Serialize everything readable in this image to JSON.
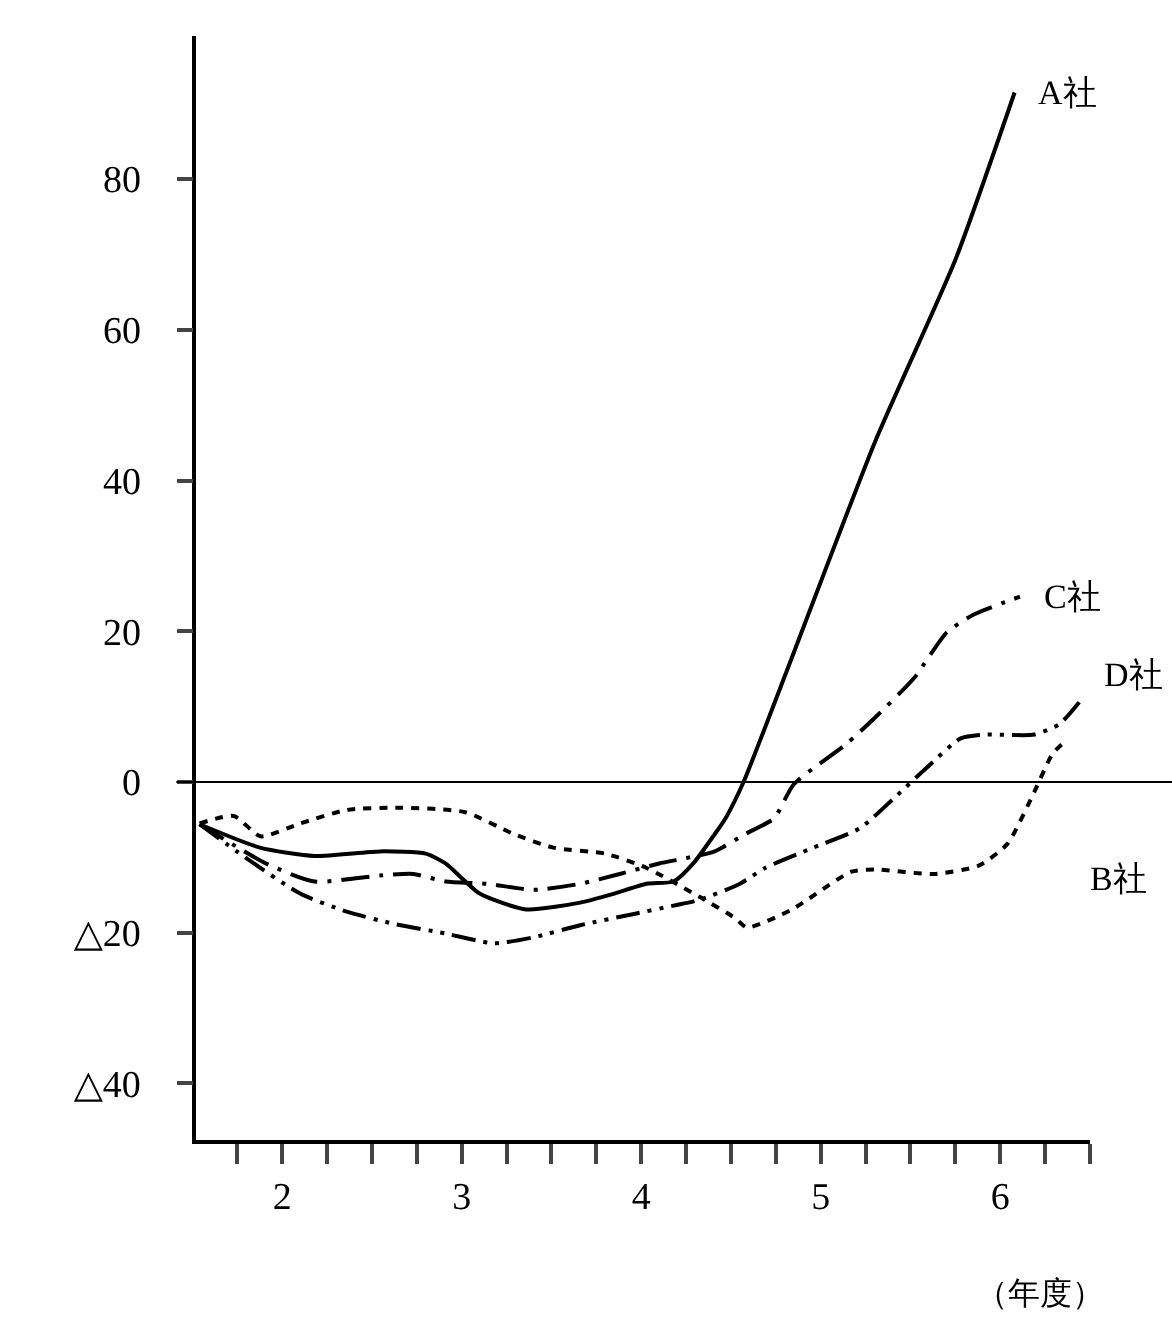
{
  "chart_data": {
    "type": "line",
    "xlabel": "（年度）",
    "x": [
      1.54,
      1.876,
      2.18,
      2.545,
      2.8,
      2.91,
      3.1,
      3.36,
      3.66,
      3.85,
      4.03,
      4.18,
      4.29,
      4.41,
      4.47,
      4.57,
      5.3,
      5.75,
      6.08
    ],
    "series": [
      {
        "name": "A社",
        "color": "#000000",
        "line_style": "solid",
        "values": [
          -5.6,
          -8.7,
          -9.8,
          -9.2,
          -9.5,
          -10.8,
          -14.8,
          -16.9,
          -16,
          -14.8,
          -13.5,
          -13.2,
          -10.8,
          -6.9,
          -4.8,
          0,
          45,
          69.3,
          91.5
        ]
      },
      {
        "name": "B社",
        "color": "#000000",
        "line_style": "dashed",
        "x": [
          1.54,
          1.73,
          1.88,
          2.1,
          2.36,
          2.66,
          3.02,
          3.29,
          3.51,
          3.8,
          4.03,
          4.33,
          4.52,
          4.59,
          4.84,
          5.17,
          5.3,
          5.63,
          5.88,
          6.04,
          6.19,
          6.29,
          6.37
        ],
        "values": [
          -5.5,
          -4.5,
          -7.2,
          -5.5,
          -3.7,
          -3.4,
          -4,
          -6.9,
          -8.7,
          -9.5,
          -11.4,
          -15.3,
          -18,
          -19.3,
          -16.9,
          -11.9,
          -11.6,
          -12.2,
          -11.1,
          -8.2,
          -1.3,
          3.7,
          5.6
        ]
      },
      {
        "name": "C社",
        "color": "#000000",
        "line_style": "dashdot",
        "x": [
          1.54,
          1.91,
          2.18,
          2.545,
          2.73,
          2.91,
          3.14,
          3.4,
          3.66,
          3.88,
          4.1,
          4.25,
          4.41,
          4.58,
          4.74,
          4.85,
          5.14,
          5.3,
          5.52,
          5.7,
          5.85,
          6.11
        ],
        "values": [
          -5.6,
          -10.8,
          -13.2,
          -12.4,
          -12.2,
          -13.2,
          -13.5,
          -14.3,
          -13.5,
          -12.2,
          -10.8,
          -10.1,
          -9.2,
          -6.9,
          -4.8,
          -0.3,
          5,
          8.5,
          13.8,
          19.8,
          22.2,
          24.6
        ]
      },
      {
        "name": "D社",
        "color": "#000000",
        "line_style": "dashdotdot",
        "x": [
          1.54,
          1.8,
          2.1,
          2.36,
          2.62,
          2.91,
          3.18,
          3.4,
          3.66,
          3.96,
          4.18,
          4.33,
          4.55,
          4.69,
          4.96,
          5.22,
          5.41,
          5.59,
          5.78,
          5.92,
          6.19,
          6.33,
          6.44
        ],
        "values": [
          -5.6,
          -10.1,
          -14.8,
          -17.2,
          -18.8,
          -20.1,
          -21.4,
          -20.6,
          -19,
          -17.5,
          -16.4,
          -15.6,
          -13.5,
          -11.4,
          -8.7,
          -6.1,
          -2.1,
          1.9,
          5.8,
          6.3,
          6.3,
          7.7,
          10.6
        ]
      }
    ],
    "xlim": [
      1.52,
      6.5
    ],
    "xticks": [
      {
        "value": 1.75,
        "label": null
      },
      2,
      {
        "value": 2.25,
        "label": null
      },
      {
        "value": 2.5,
        "label": null
      },
      {
        "value": 2.75,
        "label": null
      },
      3,
      {
        "value": 3.25,
        "label": null
      },
      {
        "value": 3.5,
        "label": null
      },
      {
        "value": 3.75,
        "label": null
      },
      4,
      {
        "value": 4.25,
        "label": null
      },
      {
        "value": 4.5,
        "label": null
      },
      {
        "value": 4.75,
        "label": null
      },
      5,
      {
        "value": 5.25,
        "label": null
      },
      {
        "value": 5.5,
        "label": null
      },
      {
        "value": 5.75,
        "label": null
      },
      6,
      {
        "value": 6.25,
        "label": null
      },
      {
        "value": 6.5,
        "label": null
      }
    ],
    "ylim": [
      -47.5,
      99
    ],
    "yticks": [
      {
        "value": -40,
        "label": "△40"
      },
      {
        "value": -20,
        "label": "△20"
      },
      0,
      20,
      40,
      60,
      80
    ],
    "ref_lines": [
      {
        "axis": "y",
        "value": 0,
        "color": "#000000"
      }
    ],
    "grid": false,
    "legend": false
  }
}
